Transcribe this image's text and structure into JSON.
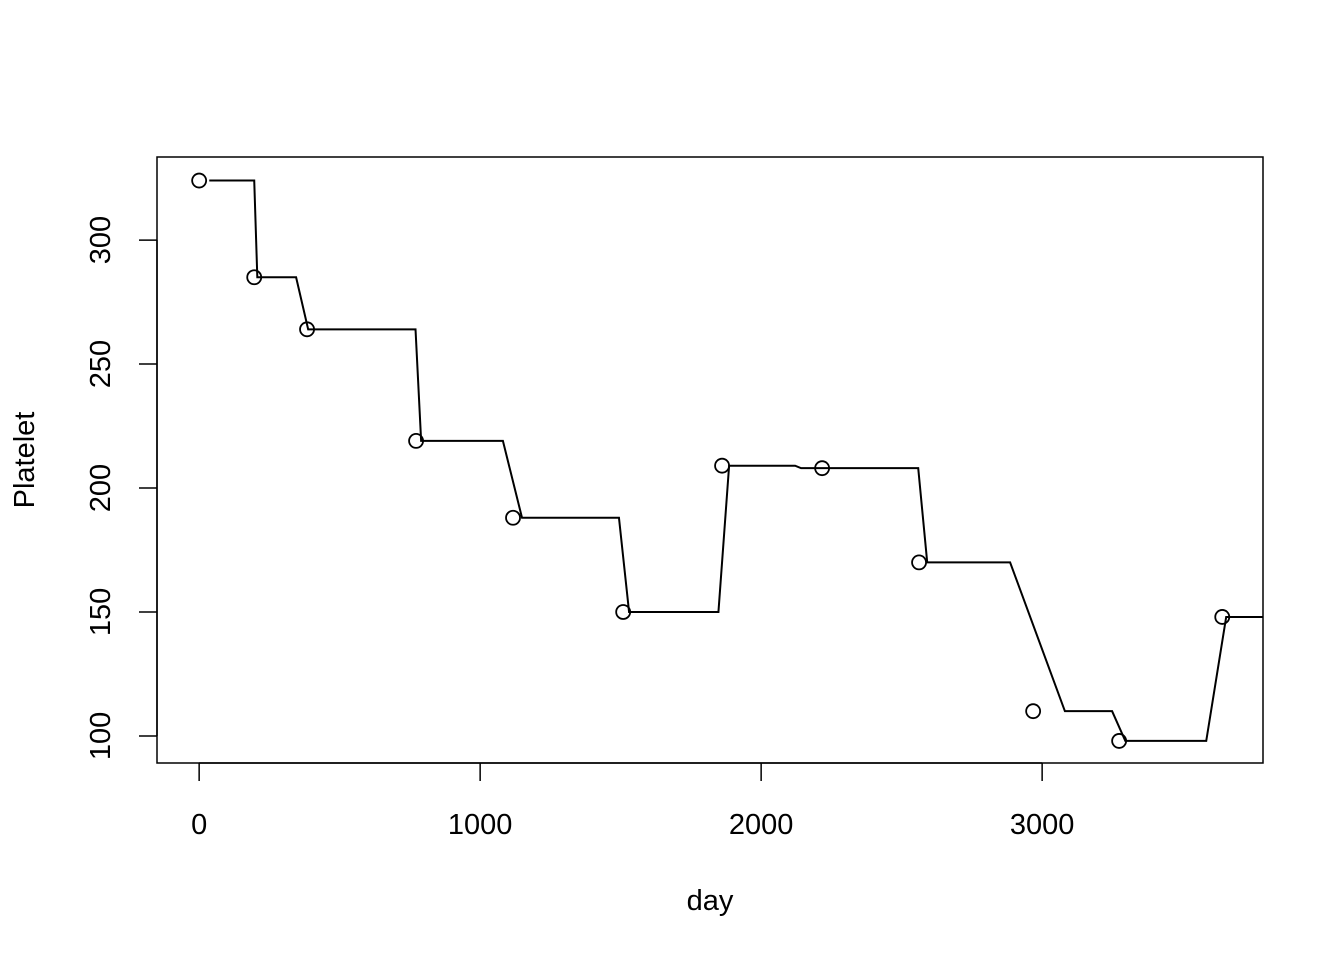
{
  "chart_data": {
    "type": "scatter",
    "xlabel": "day",
    "ylabel": "Platelet",
    "xlim": [
      -150,
      3786
    ],
    "ylim": [
      89.1,
      333.5
    ],
    "xticks": [
      0,
      1000,
      2000,
      3000
    ],
    "yticks": [
      100,
      150,
      200,
      250,
      300
    ],
    "series": [
      {
        "style": "points",
        "color": "#000000",
        "x": [
          0,
          196,
          384,
          772,
          1117,
          1509,
          1861,
          2217,
          2562,
          2968,
          3274,
          3641
        ],
        "values": [
          324,
          285,
          264,
          219,
          188,
          150,
          209,
          208,
          170,
          110,
          98,
          148
        ]
      },
      {
        "style": "line",
        "color": "#000000",
        "x": [
          36,
          196,
          207,
          345,
          388,
          770,
          790,
          1081,
          1149,
          1494,
          1530,
          1848,
          1886,
          2121,
          2142,
          2559,
          2591,
          2886,
          3081,
          3249,
          3296,
          3584,
          3655,
          3786
        ],
        "values": [
          324,
          324,
          285,
          285,
          264,
          264,
          219,
          219,
          188,
          188,
          150,
          150,
          209,
          209,
          208,
          208,
          170,
          170,
          110,
          110,
          98,
          98,
          148,
          148
        ]
      }
    ]
  }
}
